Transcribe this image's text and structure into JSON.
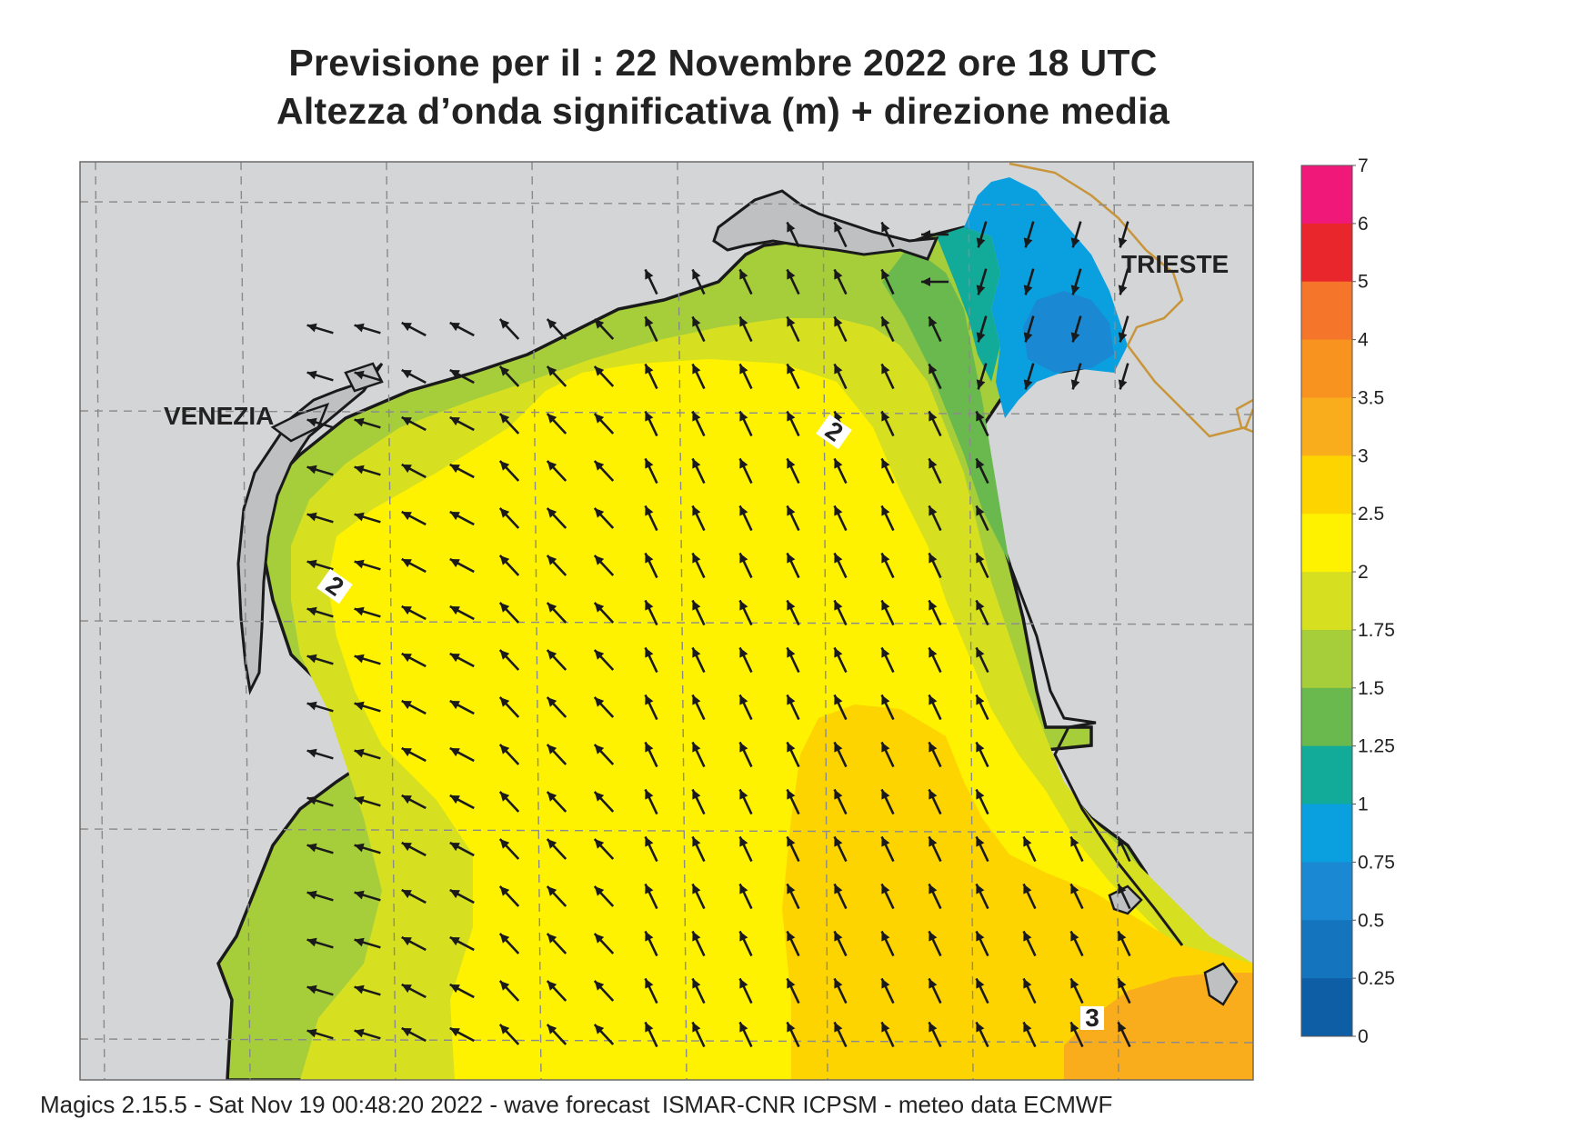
{
  "title": {
    "line1": "Previsione per il  :  22 Novembre  2022   ore 18 UTC",
    "line2": "Altezza d’onda significativa (m) + direzione media"
  },
  "cities": {
    "venezia": "VENEZIA",
    "trieste": "TRIESTE"
  },
  "contour_labels": [
    "2",
    "2",
    "3"
  ],
  "colorbar": {
    "levels": [
      "7",
      "6",
      "5",
      "4",
      "3.5",
      "3",
      "2.5",
      "2",
      "1.75",
      "1.5",
      "1.25",
      "1",
      "0.75",
      "0.5",
      "0.25",
      "0"
    ],
    "colors": [
      "#f0197a",
      "#e8262b",
      "#f5762a",
      "#f7931e",
      "#f9ad1d",
      "#fdd400",
      "#fff200",
      "#d6e021",
      "#a6cd3a",
      "#6ab94e",
      "#12ab9a",
      "#0aa0e0",
      "#1a88d2",
      "#1474be",
      "#0e5ea6"
    ]
  },
  "palette": {
    "land": "#d4d5d7",
    "coast": "#1a1a1a",
    "border": "#c8953a"
  },
  "footer": {
    "software": "Magics 2.15.5 - Sat Nov 19 00:48:20 2022 - wave forecast",
    "source": "ISMAR-CNR  ICPSM - meteo data   ECMWF"
  }
}
